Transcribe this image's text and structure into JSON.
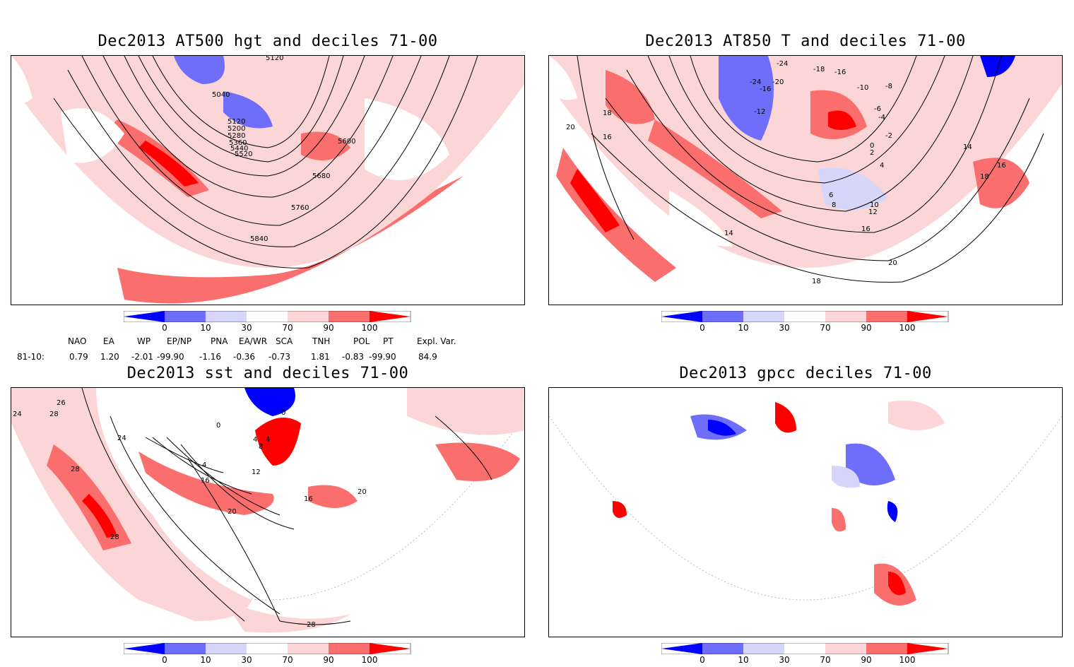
{
  "panels": [
    {
      "title": "Dec2013 AT500 hgt and deciles 71-00",
      "contour_labels": [
        "5120",
        "5040",
        "5120",
        "5200",
        "5280",
        "5360",
        "5440",
        "5520",
        "5600",
        "5680",
        "5760",
        "5840"
      ]
    },
    {
      "title": "Dec2013 AT850 T and deciles 71-00",
      "contour_labels": [
        "-24",
        "-18",
        "-16",
        "-24",
        "-20",
        "-16",
        "-12",
        "-10",
        "-8",
        "-6",
        "-4",
        "-2",
        "0",
        "2",
        "4",
        "6",
        "8",
        "10",
        "12",
        "14",
        "16",
        "18",
        "20",
        "16",
        "18",
        "14",
        "16",
        "18",
        "20"
      ]
    },
    {
      "title": "Dec2013 sst and deciles 71-00",
      "contour_labels": [
        "24",
        "26",
        "28",
        "24",
        "0",
        "0",
        "4",
        "4",
        "8",
        "4",
        "12",
        "16",
        "20",
        "16",
        "20",
        "28",
        "28",
        "28"
      ]
    },
    {
      "title": "Dec2013 gpcc deciles 71-00",
      "contour_labels": []
    }
  ],
  "colorbar": {
    "labels": [
      "0",
      "10",
      "30",
      "70",
      "90",
      "100"
    ],
    "colors": [
      "#0000ff",
      "#6e6efa",
      "#d6d6fa",
      "#ffffff",
      "#fcd6d6",
      "#fa6e6e",
      "#ff0000"
    ]
  },
  "indices": {
    "headers": [
      "NAO",
      "EA",
      "WP",
      "EP/NP",
      "PNA",
      "EA/WR",
      "SCA",
      "TNH",
      "POL",
      "PT",
      "Expl. Var."
    ],
    "row_label": "81-10:",
    "values": [
      "0.79",
      "1.20",
      "-2.01",
      "-99.90",
      "-1.16",
      "-0.36",
      "-0.73",
      "1.81",
      "-0.83",
      "-99.90",
      "84.9"
    ]
  }
}
